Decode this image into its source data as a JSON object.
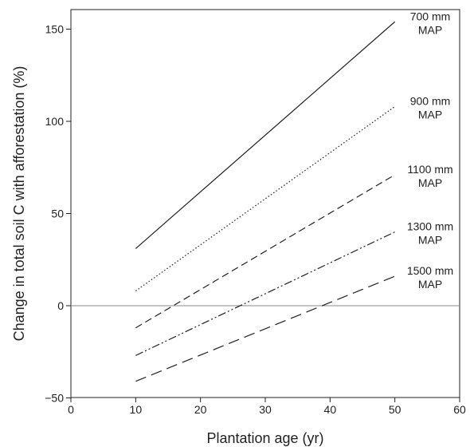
{
  "chart_data": {
    "type": "line",
    "title": "",
    "xlabel": "Plantation age (yr)",
    "ylabel": "Change in total soil C with afforestation (%)",
    "xlim": [
      0,
      60
    ],
    "ylim": [
      -50,
      160
    ],
    "xticks": [
      0,
      10,
      20,
      30,
      40,
      50,
      60
    ],
    "yticks": [
      -50,
      0,
      50,
      100,
      150
    ],
    "xtick_labels": [
      "0",
      "10",
      "20",
      "30",
      "40",
      "50",
      "60"
    ],
    "ytick_labels": [
      "−50",
      "0",
      "50",
      "100",
      "150"
    ],
    "grid": false,
    "legend": "none",
    "reference_line": {
      "y": 0,
      "color": "#888888"
    },
    "series": [
      {
        "label_line1": "700 mm",
        "label_line2": "MAP",
        "x": [
          10,
          50
        ],
        "y": [
          31,
          154
        ],
        "style": "solid"
      },
      {
        "label_line1": "900 mm",
        "label_line2": "MAP",
        "x": [
          10,
          50
        ],
        "y": [
          8,
          108
        ],
        "style": "dotted"
      },
      {
        "label_line1": "1100 mm",
        "label_line2": "MAP",
        "x": [
          10,
          50
        ],
        "y": [
          -12,
          71
        ],
        "style": "dashed"
      },
      {
        "label_line1": "1300 mm",
        "label_line2": "MAP",
        "x": [
          10,
          50
        ],
        "y": [
          -27,
          40
        ],
        "style": "dashdotdot"
      },
      {
        "label_line1": "1500 mm",
        "label_line2": "MAP",
        "x": [
          10,
          50
        ],
        "y": [
          -41,
          16
        ],
        "style": "longdash"
      }
    ]
  }
}
